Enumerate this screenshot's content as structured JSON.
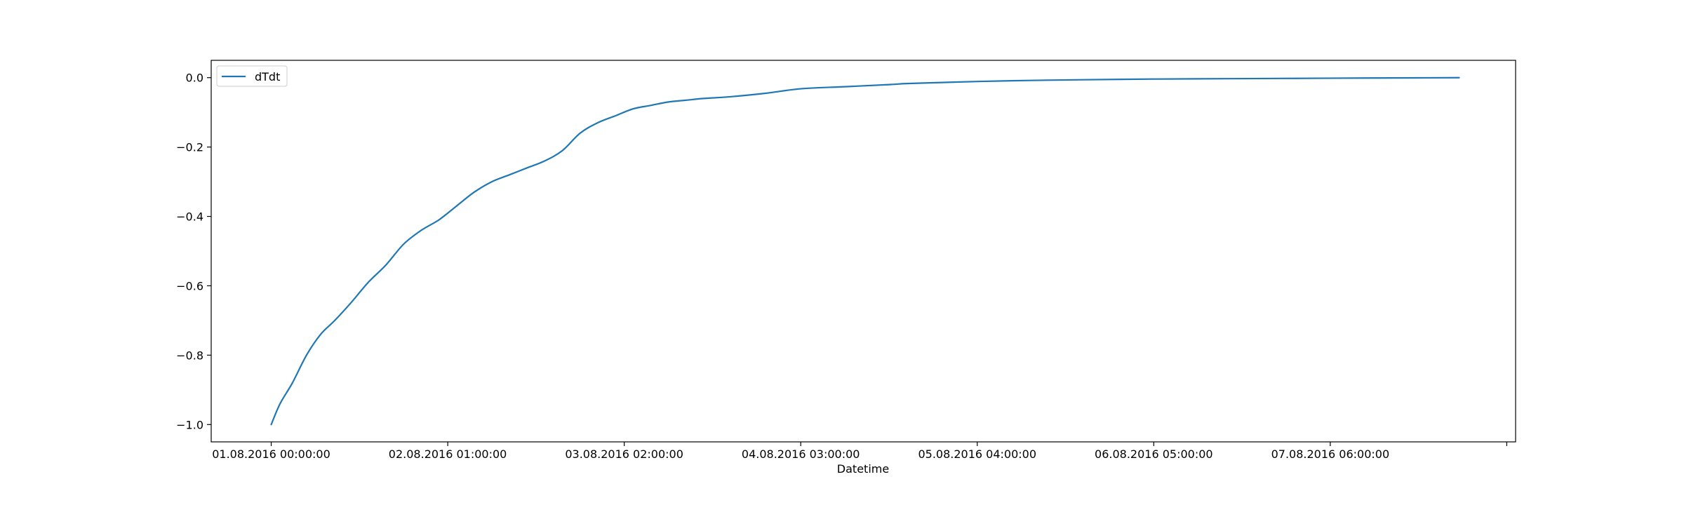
{
  "chart_data": {
    "type": "line",
    "title": "",
    "xlabel": "Datetime",
    "ylabel": "",
    "x_ticks": [
      {
        "value": 0,
        "label": "01.08.2016 00:00:00"
      },
      {
        "value": 1,
        "label": "02.08.2016 01:00:00"
      },
      {
        "value": 2,
        "label": "03.08.2016 02:00:00"
      },
      {
        "value": 3,
        "label": "04.08.2016 03:00:00"
      },
      {
        "value": 4,
        "label": "05.08.2016 04:00:00"
      },
      {
        "value": 5,
        "label": "06.08.2016 05:00:00"
      },
      {
        "value": 6,
        "label": "07.08.2016 06:00:00"
      },
      {
        "value": 7,
        "label": ""
      }
    ],
    "y_ticks": [
      {
        "value": 0.0,
        "label": "0.0"
      },
      {
        "value": -0.2,
        "label": "−0.2"
      },
      {
        "value": -0.4,
        "label": "−0.4"
      },
      {
        "value": -0.6,
        "label": "−0.6"
      },
      {
        "value": -0.8,
        "label": "−0.8"
      },
      {
        "value": -1.0,
        "label": "−1.0"
      }
    ],
    "xlim": [
      -0.34,
      7.05
    ],
    "ylim": [
      -1.05,
      0.05
    ],
    "grid": false,
    "legend": "top-left",
    "series": [
      {
        "name": "dTdt",
        "color": "#1f77b4",
        "x": [
          0.0,
          0.05,
          0.12,
          0.2,
          0.28,
          0.36,
          0.45,
          0.55,
          0.65,
          0.75,
          0.85,
          0.95,
          1.05,
          1.15,
          1.25,
          1.35,
          1.45,
          1.55,
          1.65,
          1.75,
          1.85,
          1.95,
          2.05,
          2.15,
          2.25,
          2.35,
          2.45,
          2.6,
          2.8,
          3.0,
          3.25,
          3.5,
          3.6,
          3.8,
          4.0,
          4.3,
          4.6,
          5.0,
          5.4,
          5.8,
          6.2,
          6.5,
          6.73
        ],
        "y": [
          -1.0,
          -0.94,
          -0.88,
          -0.8,
          -0.74,
          -0.7,
          -0.65,
          -0.59,
          -0.54,
          -0.48,
          -0.44,
          -0.41,
          -0.37,
          -0.33,
          -0.3,
          -0.28,
          -0.26,
          -0.24,
          -0.21,
          -0.16,
          -0.13,
          -0.11,
          -0.09,
          -0.08,
          -0.07,
          -0.065,
          -0.06,
          -0.055,
          -0.045,
          -0.032,
          -0.026,
          -0.02,
          -0.017,
          -0.014,
          -0.011,
          -0.008,
          -0.006,
          -0.004,
          -0.003,
          -0.002,
          -0.001,
          -0.0005,
          0.0
        ]
      }
    ]
  }
}
